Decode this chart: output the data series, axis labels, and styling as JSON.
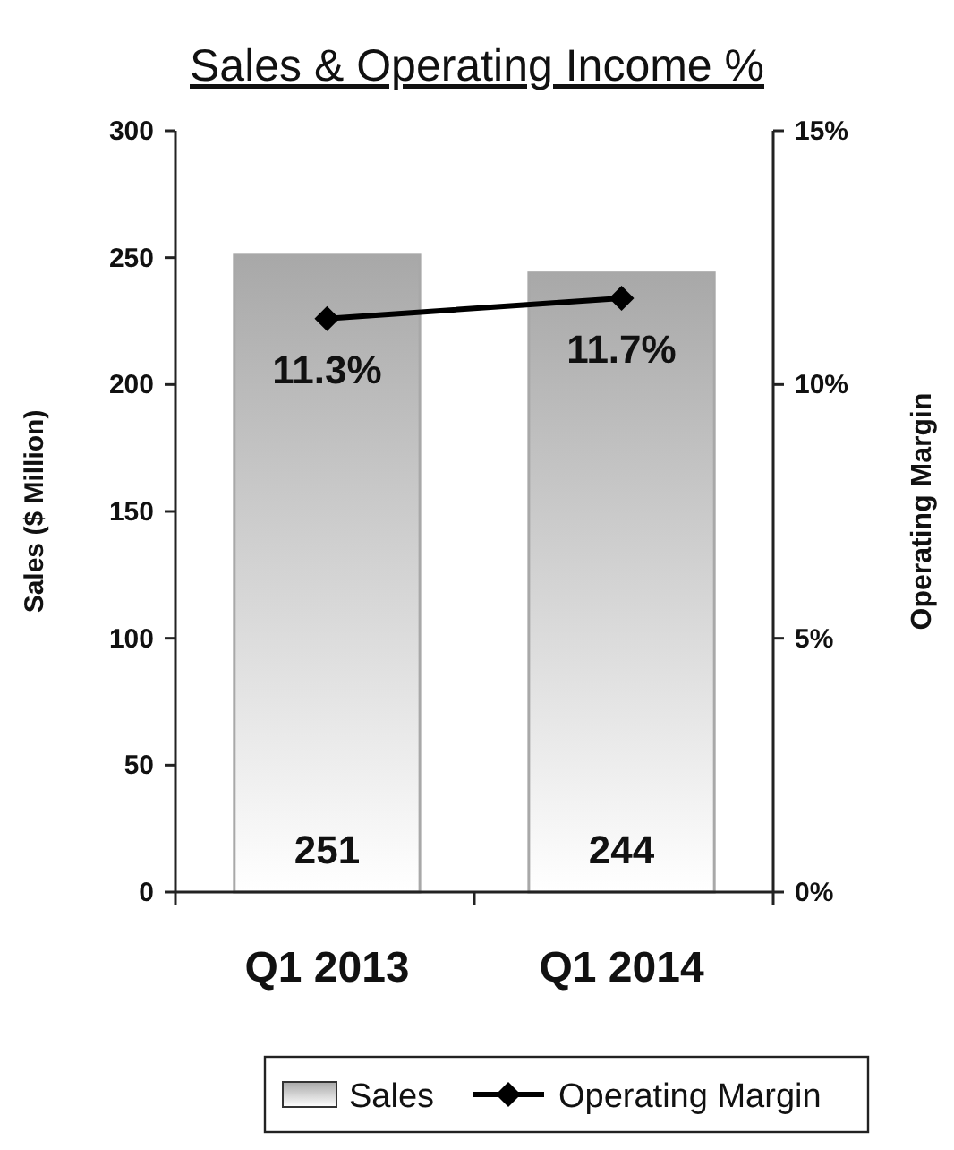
{
  "chart_data": {
    "type": "bar",
    "title": "Sales & Operating Income %",
    "ylabel": "Sales ($ Million)",
    "y2label": "Operating Margin",
    "categories": [
      "Q1 2013",
      "Q1 2014"
    ],
    "series": [
      {
        "name": "Sales",
        "color": "#a8a8a8",
        "values": [
          251,
          244
        ],
        "value_labels": [
          "251",
          "244"
        ]
      },
      {
        "name": "Operating Margin",
        "type": "line",
        "axis": "y2",
        "color": "#000000",
        "values": [
          11.3,
          11.7
        ],
        "value_labels": [
          "11.3%",
          "11.7%"
        ],
        "marker": "diamond"
      }
    ],
    "ylim": [
      0,
      300
    ],
    "yticks": [
      0,
      50,
      100,
      150,
      200,
      250,
      300
    ],
    "y2lim": [
      0,
      15
    ],
    "y2ticks": [
      {
        "value": 0,
        "label": "0%"
      },
      {
        "value": 5,
        "label": "5%"
      },
      {
        "value": 10,
        "label": "10%"
      },
      {
        "value": 15,
        "label": "15%"
      }
    ],
    "legend": "bottom",
    "grid": false
  }
}
